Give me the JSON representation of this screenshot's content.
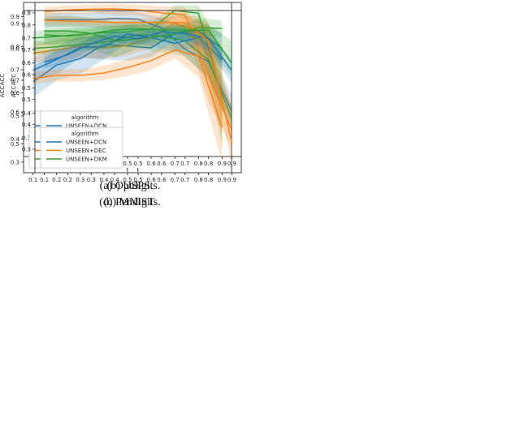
{
  "style": {
    "background": "#ffffff",
    "spine_color": "#3c3c3c",
    "tick_color": "#262626",
    "legend_border": "#cccccc",
    "legend_background": "#ffffff",
    "band_opacity": 0.2,
    "series_colors": {
      "blue": "#1f77b4",
      "orange": "#ff7f0e",
      "green": "#2ca02c"
    }
  },
  "chart_data": [
    {
      "type": "line",
      "caption": "(a) Optdigits.",
      "xlabel": "t",
      "ylabel": "ACC",
      "legend_title": "algorithm",
      "legend_position": "lower left",
      "x": [
        0.1,
        0.2,
        0.3,
        0.4,
        0.5,
        0.6,
        0.7,
        0.8,
        0.9
      ],
      "xticks": [
        0.1,
        0.2,
        0.3,
        0.4,
        0.5,
        0.6,
        0.7,
        0.8,
        0.9
      ],
      "xlim": [
        0.06,
        0.94
      ],
      "yticks": [
        0.5,
        0.6,
        0.7,
        0.8,
        0.9
      ],
      "ylim": [
        0.46,
        0.945
      ],
      "series": [
        {
          "name": "UNSEEN+DCN",
          "color": "#1f77b4",
          "values": [
            0.695,
            0.748,
            0.768,
            0.813,
            0.808,
            0.802,
            0.849,
            0.855,
            0.8
          ],
          "band_lower": [
            0.645,
            0.7,
            0.72,
            0.765,
            0.762,
            0.772,
            0.826,
            0.818,
            0.752
          ],
          "band_upper": [
            0.742,
            0.795,
            0.815,
            0.86,
            0.852,
            0.835,
            0.872,
            0.888,
            0.848
          ]
        },
        {
          "name": "UNSEEN+DEC",
          "color": "#ff7f0e",
          "values": [
            0.785,
            0.796,
            0.807,
            0.803,
            0.81,
            0.834,
            0.88,
            0.855,
            0.656
          ],
          "band_lower": [
            0.756,
            0.762,
            0.77,
            0.768,
            0.778,
            0.8,
            0.848,
            0.782,
            0.525
          ],
          "band_upper": [
            0.812,
            0.828,
            0.843,
            0.84,
            0.843,
            0.866,
            0.906,
            0.902,
            0.78
          ]
        },
        {
          "name": "UNSEEN+DKM",
          "color": "#2ca02c",
          "values": [
            0.833,
            0.838,
            0.844,
            0.85,
            0.853,
            0.862,
            0.92,
            0.911,
            0.651
          ],
          "band_lower": [
            0.81,
            0.815,
            0.82,
            0.826,
            0.83,
            0.845,
            0.903,
            0.878,
            0.492
          ],
          "band_upper": [
            0.855,
            0.86,
            0.866,
            0.872,
            0.876,
            0.88,
            0.936,
            0.935,
            0.8
          ]
        }
      ]
    },
    {
      "type": "line",
      "caption": "(b) USPS.",
      "xlabel": "t",
      "ylabel": "ACC",
      "legend_title": "algorithm",
      "legend_position": "lower left",
      "x": [
        0.1,
        0.2,
        0.3,
        0.4,
        0.5,
        0.6,
        0.7,
        0.8,
        0.9
      ],
      "xticks": [
        0.1,
        0.2,
        0.3,
        0.4,
        0.5,
        0.6,
        0.7,
        0.8,
        0.9
      ],
      "xlim": [
        0.06,
        0.94
      ],
      "yticks": [
        0.3,
        0.4,
        0.5,
        0.6,
        0.7,
        0.8
      ],
      "ylim": [
        0.226,
        0.842
      ],
      "series": [
        {
          "name": "UNSEEN+DCN",
          "color": "#1f77b4",
          "values": [
            0.772,
            0.773,
            0.772,
            0.778,
            0.775,
            0.74,
            0.655,
            0.605,
            0.405
          ],
          "band_lower": [
            0.745,
            0.745,
            0.742,
            0.73,
            0.733,
            0.7,
            0.622,
            0.545,
            0.352
          ],
          "band_upper": [
            0.8,
            0.8,
            0.8,
            0.82,
            0.803,
            0.782,
            0.742,
            0.658,
            0.47
          ]
        },
        {
          "name": "UNSEEN+DEC",
          "color": "#ff7f0e",
          "values": [
            0.805,
            0.812,
            0.815,
            0.816,
            0.812,
            0.8,
            0.793,
            0.552,
            0.33
          ],
          "band_lower": [
            0.788,
            0.795,
            0.798,
            0.792,
            0.79,
            0.77,
            0.738,
            0.445,
            0.258
          ],
          "band_upper": [
            0.824,
            0.83,
            0.832,
            0.836,
            0.832,
            0.826,
            0.824,
            0.662,
            0.425
          ]
        },
        {
          "name": "UNSEEN+DKM",
          "color": "#2ca02c",
          "values": [
            0.728,
            0.728,
            0.718,
            0.69,
            0.713,
            0.708,
            0.688,
            0.612,
            0.375
          ],
          "band_lower": [
            0.673,
            0.668,
            0.652,
            0.622,
            0.658,
            0.642,
            0.628,
            0.532,
            0.328
          ],
          "band_upper": [
            0.785,
            0.79,
            0.78,
            0.762,
            0.768,
            0.772,
            0.748,
            0.668,
            0.425
          ]
        }
      ]
    },
    {
      "type": "line",
      "caption": "(c) MNIST.",
      "xlabel": "t",
      "ylabel": "ACC",
      "legend_title": "algorithm",
      "legend_position": "lower left",
      "x": [
        0.1,
        0.2,
        0.3,
        0.4,
        0.5,
        0.6,
        0.7,
        0.8,
        0.9
      ],
      "xticks": [
        0.1,
        0.2,
        0.3,
        0.4,
        0.5,
        0.6,
        0.7,
        0.8,
        0.9
      ],
      "xlim": [
        0.06,
        0.94
      ],
      "yticks": [
        0.3,
        0.4,
        0.5,
        0.6,
        0.7,
        0.8,
        0.9
      ],
      "ylim": [
        0.254,
        0.957
      ],
      "series": [
        {
          "name": "UNSEEN+DCN",
          "color": "#1f77b4",
          "values": [
            0.698,
            0.745,
            0.797,
            0.8,
            0.855,
            0.84,
            0.815,
            0.84,
            0.745
          ],
          "band_lower": [
            0.652,
            0.682,
            0.752,
            0.745,
            0.818,
            0.8,
            0.778,
            0.8,
            0.7
          ],
          "band_upper": [
            0.752,
            0.8,
            0.848,
            0.852,
            0.895,
            0.872,
            0.85,
            0.878,
            0.792
          ]
        },
        {
          "name": "UNSEEN+DEC",
          "color": "#ff7f0e",
          "values": [
            0.662,
            0.676,
            0.676,
            0.686,
            0.71,
            0.74,
            0.786,
            0.76,
            0.45
          ],
          "band_lower": [
            0.64,
            0.65,
            0.648,
            0.658,
            0.673,
            0.7,
            0.75,
            0.668,
            0.298
          ],
          "band_upper": [
            0.686,
            0.702,
            0.702,
            0.718,
            0.746,
            0.78,
            0.82,
            0.812,
            0.61
          ]
        },
        {
          "name": "UNSEEN+DKM",
          "color": "#2ca02c",
          "values": [
            0.793,
            0.8,
            0.81,
            0.82,
            0.83,
            0.841,
            0.855,
            0.884,
            0.879
          ],
          "band_lower": [
            0.763,
            0.773,
            0.78,
            0.79,
            0.8,
            0.814,
            0.824,
            0.843,
            0.843
          ],
          "band_upper": [
            0.824,
            0.828,
            0.84,
            0.85,
            0.86,
            0.869,
            0.888,
            0.924,
            0.914
          ]
        }
      ]
    },
    {
      "type": "line",
      "caption": "(d) Pendigits.",
      "xlabel": "t",
      "ylabel": "ACC",
      "legend_title": "algorithm",
      "legend_position": "lower left",
      "x": [
        0.1,
        0.2,
        0.3,
        0.4,
        0.5,
        0.6,
        0.7,
        0.8,
        0.9
      ],
      "xticks": [
        0.1,
        0.2,
        0.3,
        0.4,
        0.5,
        0.6,
        0.7,
        0.8,
        0.9
      ],
      "xlim": [
        0.06,
        0.94
      ],
      "yticks": [
        0.3,
        0.4,
        0.5,
        0.6,
        0.7,
        0.8
      ],
      "ylim": [
        0.205,
        0.858
      ],
      "series": [
        {
          "name": "UNSEEN+DCN",
          "color": "#1f77b4",
          "values": [
            0.65,
            0.68,
            0.725,
            0.755,
            0.745,
            0.773,
            0.765,
            0.745,
            0.615
          ],
          "band_lower": [
            0.625,
            0.65,
            0.7,
            0.73,
            0.718,
            0.748,
            0.74,
            0.7,
            0.565
          ],
          "band_upper": [
            0.676,
            0.71,
            0.75,
            0.776,
            0.77,
            0.792,
            0.786,
            0.776,
            0.66
          ]
        },
        {
          "name": "UNSEEN+DEC",
          "color": "#ff7f0e",
          "values": [
            0.819,
            0.815,
            0.814,
            0.81,
            0.81,
            0.81,
            0.809,
            0.735,
            0.325
          ],
          "band_lower": [
            0.8,
            0.799,
            0.796,
            0.79,
            0.79,
            0.789,
            0.785,
            0.658,
            0.235
          ],
          "band_upper": [
            0.839,
            0.833,
            0.83,
            0.829,
            0.828,
            0.829,
            0.839,
            0.81,
            0.46
          ]
        },
        {
          "name": "UNSEEN+DKM",
          "color": "#2ca02c",
          "values": [
            0.76,
            0.755,
            0.765,
            0.78,
            0.784,
            0.78,
            0.78,
            0.779,
            0.645
          ],
          "band_lower": [
            0.74,
            0.735,
            0.745,
            0.764,
            0.769,
            0.764,
            0.763,
            0.718,
            0.59
          ],
          "band_upper": [
            0.78,
            0.775,
            0.785,
            0.796,
            0.8,
            0.796,
            0.799,
            0.8,
            0.735
          ]
        }
      ]
    }
  ]
}
